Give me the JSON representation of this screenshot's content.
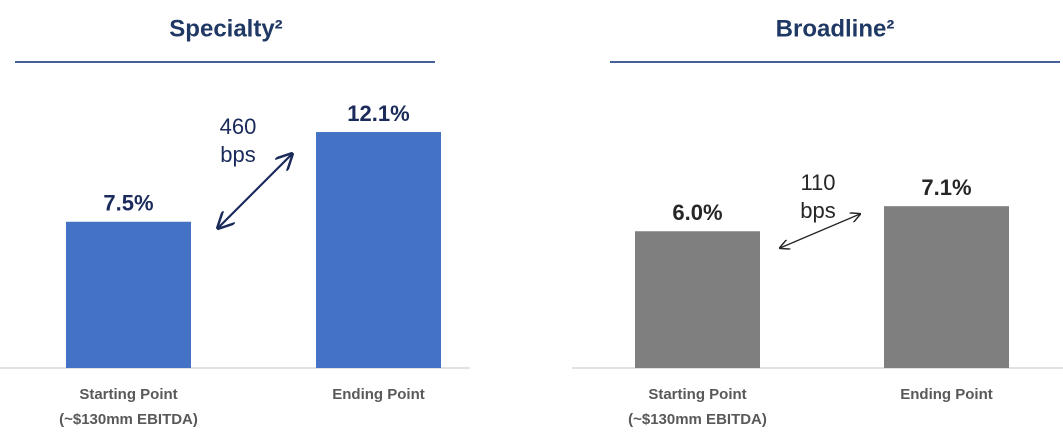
{
  "chart_data": [
    {
      "type": "bar",
      "title": "Specialty²",
      "categories": [
        [
          "Starting Point",
          "(~$130mm EBITDA)"
        ],
        [
          "Ending Point"
        ]
      ],
      "values": [
        7.5,
        12.1
      ],
      "value_labels": [
        "7.5%",
        "12.1%"
      ],
      "color": "#4472c4",
      "label_color": "#1a2a5a",
      "annotation": [
        "460",
        "bps"
      ],
      "ylim": [
        0,
        18
      ]
    },
    {
      "type": "bar",
      "title": "Broadline²",
      "categories": [
        [
          "Starting Point",
          "(~$130mm EBITDA)"
        ],
        [
          "Ending Point"
        ]
      ],
      "values": [
        6.0,
        7.1
      ],
      "value_labels": [
        "6.0%",
        "7.1%"
      ],
      "color": "#7f7f7f",
      "label_color": "#262626",
      "annotation": [
        "110",
        "bps"
      ],
      "ylim": [
        0,
        15.4
      ]
    }
  ]
}
